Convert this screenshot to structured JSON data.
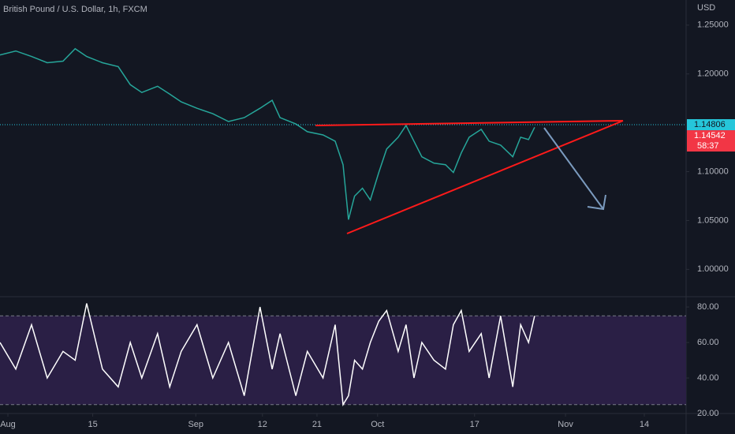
{
  "title": "British Pound / U.S. Dollar, 1h, FXCM",
  "currency": "USD",
  "price_line": 1.14806,
  "last_price": 1.14542,
  "countdown": "58:37",
  "chart_data": [
    {
      "type": "line",
      "x": [
        -1.3,
        1.3,
        3.9,
        6.5,
        9.1,
        11.1,
        13.0,
        15.6,
        18.2,
        20.2,
        22.1,
        24.7,
        26.7,
        28.6,
        31.2,
        33.8,
        36.4,
        39.0,
        41.6,
        43.6,
        44.9,
        47.5,
        49.4,
        52.0,
        54.0,
        55.3,
        56.2,
        57.2,
        58.5,
        59.8,
        61.2,
        62.5,
        64.4,
        65.7,
        67.0,
        68.3,
        70.3,
        72.2,
        73.5,
        74.8,
        76.1,
        78.1,
        79.4,
        81.3,
        83.3,
        84.6,
        85.9,
        86.9
      ],
      "series": [
        {
          "color": "#26a69a",
          "values": [
            1.2195,
            1.2235,
            1.2179,
            1.2115,
            1.2131,
            1.2259,
            1.2179,
            1.2115,
            1.2075,
            1.189,
            1.181,
            1.1874,
            1.1794,
            1.1714,
            1.1649,
            1.1593,
            1.1513,
            1.1553,
            1.1649,
            1.173,
            1.1553,
            1.1489,
            1.1409,
            1.1376,
            1.1312,
            1.1071,
            1.0509,
            1.075,
            1.0831,
            1.071,
            1.0991,
            1.1232,
            1.1352,
            1.1473,
            1.1312,
            1.1152,
            1.1087,
            1.1071,
            1.0991,
            1.1192,
            1.1352,
            1.1433,
            1.1312,
            1.1272,
            1.1152,
            1.1352,
            1.1328,
            1.1454
          ]
        }
      ],
      "xlim": [
        -1.3,
        111.9
      ],
      "xticks": [
        {
          "value": 0,
          "label": "Aug"
        },
        {
          "value": 14,
          "label": "15"
        },
        {
          "value": 31,
          "label": "Sep"
        },
        {
          "value": 42,
          "label": "12"
        },
        {
          "value": 51,
          "label": "21"
        },
        {
          "value": 61,
          "label": "Oct"
        },
        {
          "value": 77,
          "label": "17"
        },
        {
          "value": 92,
          "label": "Nov"
        },
        {
          "value": 105,
          "label": "14"
        }
      ],
      "ylim": [
        0.972,
        1.2757
      ],
      "yticks": [
        {
          "value": 1.0,
          "label": "1.00000"
        },
        {
          "value": 1.05,
          "label": "1.05000"
        },
        {
          "value": 1.1,
          "label": "1.10000"
        },
        {
          "value": 1.2,
          "label": "1.20000"
        },
        {
          "value": 1.25,
          "label": "1.25000"
        }
      ]
    },
    {
      "type": "line",
      "x": [
        -1.3,
        1.3,
        3.9,
        6.5,
        9.1,
        11.1,
        13.0,
        15.6,
        18.2,
        20.2,
        22.1,
        24.7,
        26.7,
        28.6,
        31.2,
        33.8,
        36.4,
        39.0,
        41.6,
        43.6,
        44.9,
        47.5,
        49.4,
        52.0,
        54.0,
        55.3,
        56.2,
        57.2,
        58.5,
        59.8,
        61.2,
        62.5,
        64.4,
        65.7,
        67.0,
        68.3,
        70.3,
        72.2,
        73.5,
        74.8,
        76.1,
        78.1,
        79.4,
        81.3,
        83.3,
        84.6,
        85.9,
        86.9
      ],
      "series": [
        {
          "color": "#ffffff",
          "values": [
            60,
            45,
            70,
            40,
            55,
            50,
            82,
            45,
            35,
            60,
            40,
            65,
            35,
            55,
            70,
            40,
            60,
            30,
            80,
            45,
            65,
            30,
            55,
            40,
            70,
            25,
            30,
            50,
            45,
            60,
            72,
            78,
            55,
            70,
            40,
            60,
            50,
            45,
            70,
            78,
            55,
            65,
            40,
            75,
            35,
            70,
            60,
            75
          ]
        }
      ],
      "band": [
        25,
        75
      ],
      "band_color": "#2a1f45",
      "xlim": [
        -1.3,
        111.9
      ],
      "ylim": [
        20.9,
        85.8
      ],
      "yticks": [
        {
          "value": 20,
          "label": "20.00"
        },
        {
          "value": 40,
          "label": "40.00"
        },
        {
          "value": 60,
          "label": "60.00"
        },
        {
          "value": 80,
          "label": "80.00"
        }
      ]
    }
  ]
}
